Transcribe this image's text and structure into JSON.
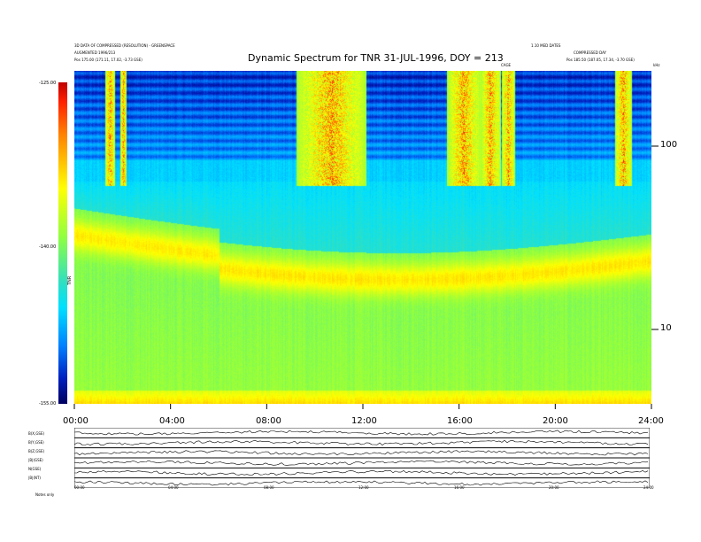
{
  "chart_data": {
    "type": "heatmap",
    "title": "Dynamic Spectrum for TNR 31-JUL-1996, DOY = 213",
    "x_tick_labels": [
      "00:00",
      "04:00",
      "08:00",
      "12:00",
      "16:00",
      "20:00",
      "24:00"
    ],
    "xlim": [
      0,
      24
    ],
    "y_scale": "log",
    "y_tick_labels": [
      "100",
      "10"
    ],
    "y_unit": "kHz",
    "colorbar": {
      "tick_labels": [
        "-125.00",
        "-140.00",
        "-155.00"
      ],
      "label": "TNR",
      "range": [
        -155,
        -125
      ],
      "colors": [
        "#000060",
        "#0020c0",
        "#0080ff",
        "#00e0ff",
        "#30e0c0",
        "#90ff40",
        "#ffff00",
        "#ff8000",
        "#ff2000",
        "#c00000"
      ]
    },
    "top_left_text": [
      "3D DATA OF COMPRESSED (RESOLUTION) - GREENSPACE",
      "AUGMENTED 1996/213",
      "Pos   175.00 (171.11, 17.02, -3.73 GSE)"
    ],
    "top_right_text": [
      "1.10 MED DATES",
      "COMPRESSED DAY",
      "Pos   185.50 (187.05, 17.34, -3.70 GSE)"
    ],
    "marker_label": "CAGE",
    "lower_panels": {
      "labels": [
        "B(X,GSE)",
        "B(Y,GSE)",
        "B(Z,GSE)",
        "|B|(GSE)",
        "N(GSE)",
        "|B|(NT)"
      ],
      "x_tick_labels": [
        "00:00",
        "04:00",
        "08:00",
        "12:00",
        "16:00",
        "20:00",
        "24:00"
      ],
      "footer_label": "Notes   only"
    }
  }
}
